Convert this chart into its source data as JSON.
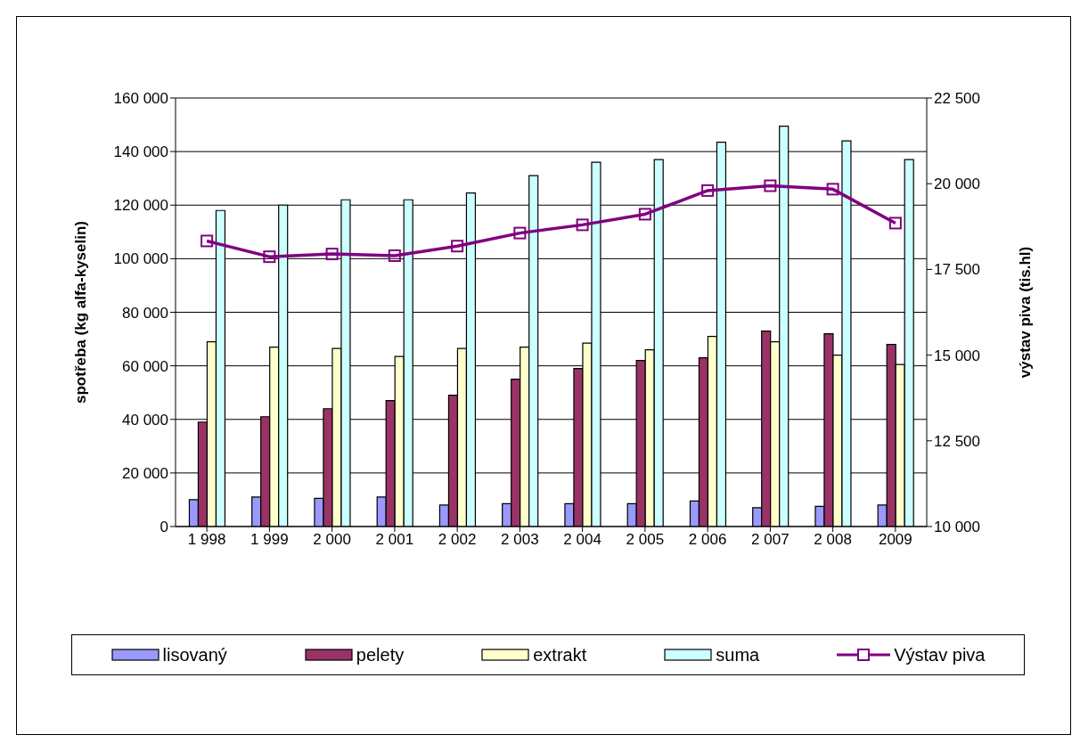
{
  "chart_data": {
    "type": "bar",
    "ylabel": "spotřeba (kg alfa-kyselin)",
    "y2label": "výstav piva (tis.hl)",
    "categories": [
      "1 998",
      "1 999",
      "2 000",
      "2 001",
      "2 002",
      "2 003",
      "2 004",
      "2 005",
      "2 006",
      "2 007",
      "2 008",
      "2009"
    ],
    "series": [
      {
        "name": "lisovaný",
        "color": "#9999ff",
        "values": [
          10000,
          11000,
          10500,
          11000,
          8000,
          8500,
          8500,
          8500,
          9500,
          7000,
          7500,
          8000
        ]
      },
      {
        "name": "pelety",
        "color": "#993366",
        "values": [
          39000,
          41000,
          44000,
          47000,
          49000,
          55000,
          59000,
          62000,
          63000,
          73000,
          72000,
          68000
        ]
      },
      {
        "name": "extrakt",
        "color": "#ffffcc",
        "values": [
          69000,
          67000,
          66500,
          63500,
          66500,
          67000,
          68500,
          66000,
          71000,
          69000,
          64000,
          60500
        ]
      },
      {
        "name": "suma",
        "color": "#ccffff",
        "values": [
          118000,
          120000,
          122000,
          122000,
          124500,
          131000,
          136000,
          137000,
          143500,
          149500,
          144000,
          137000
        ]
      },
      {
        "name": "Výstav piva",
        "type": "line",
        "axis": "y2",
        "color": "#800080",
        "marker": "square",
        "values": [
          18330,
          17870,
          17950,
          17900,
          18180,
          18560,
          18800,
          19110,
          19800,
          19940,
          19840,
          18850
        ]
      }
    ],
    "ylim": [
      0,
      160000
    ],
    "yticks": [
      0,
      {
        "value": 20000,
        "label": "20 000"
      },
      {
        "value": 40000,
        "label": "40 000"
      },
      {
        "value": 60000,
        "label": "60 000"
      },
      {
        "value": 80000,
        "label": "80 000"
      },
      {
        "value": 100000,
        "label": "100 000"
      },
      {
        "value": 120000,
        "label": "120 000"
      },
      {
        "value": 140000,
        "label": "140 000"
      },
      {
        "value": 160000,
        "label": "160 000"
      }
    ],
    "y2lim": [
      10000,
      22500
    ],
    "y2ticks": [
      {
        "value": 10000,
        "label": "10 000"
      },
      {
        "value": 12500,
        "label": "12 500"
      },
      {
        "value": 15000,
        "label": "15 000"
      },
      {
        "value": 17500,
        "label": "17 500"
      },
      {
        "value": 20000,
        "label": "20 000"
      },
      {
        "value": 22500,
        "label": "22 500"
      }
    ],
    "grid": "y",
    "legend": "bottom"
  }
}
